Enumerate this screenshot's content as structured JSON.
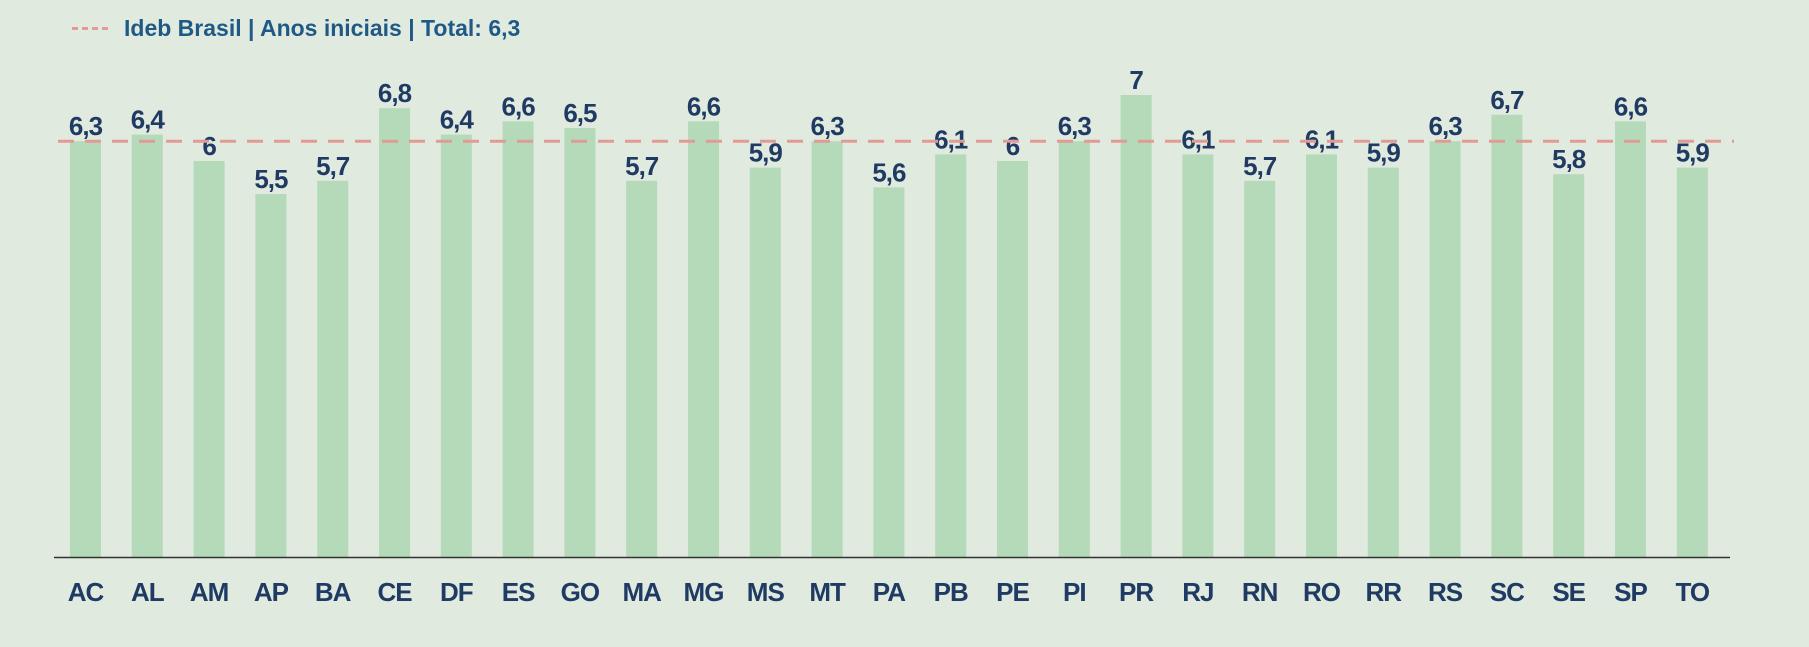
{
  "legend": {
    "label": "Ideb Brasil | Anos iniciais | Total: 6,3"
  },
  "colors": {
    "bar": "#b5dab9",
    "reference_line": "#e29a94",
    "text": "#1f3b63",
    "legend_text": "#1f5a87",
    "axis": "#333333",
    "background": "#e1eadf"
  },
  "chart_data": {
    "type": "bar",
    "categories": [
      "AC",
      "AL",
      "AM",
      "AP",
      "BA",
      "CE",
      "DF",
      "ES",
      "GO",
      "MA",
      "MG",
      "MS",
      "MT",
      "PA",
      "PB",
      "PE",
      "PI",
      "PR",
      "RJ",
      "RN",
      "RO",
      "RR",
      "RS",
      "SC",
      "SE",
      "SP",
      "TO"
    ],
    "values": [
      6.3,
      6.4,
      6.0,
      5.5,
      5.7,
      6.8,
      6.4,
      6.6,
      6.5,
      5.7,
      6.6,
      5.9,
      6.3,
      5.6,
      6.1,
      6.0,
      6.3,
      7.0,
      6.1,
      5.7,
      6.1,
      5.9,
      6.3,
      6.7,
      5.8,
      6.6,
      5.9
    ],
    "value_labels": [
      "6,3",
      "6,4",
      "6",
      "5,5",
      "5,7",
      "6,8",
      "6,4",
      "6,6",
      "6,5",
      "5,7",
      "6,6",
      "5,9",
      "6,3",
      "5,6",
      "6,1",
      "6",
      "6,3",
      "7",
      "6,1",
      "5,7",
      "6,1",
      "5,9",
      "6,3",
      "6,7",
      "5,8",
      "6,6",
      "5,9"
    ],
    "reference_line": {
      "name": "Ideb Brasil | Anos iniciais | Total: 6,3",
      "value": 6.3,
      "style": "dashed"
    },
    "title": "",
    "xlabel": "",
    "ylabel": "",
    "ylim": [
      0,
      7
    ],
    "grid": false,
    "legend_position": "top-left"
  }
}
